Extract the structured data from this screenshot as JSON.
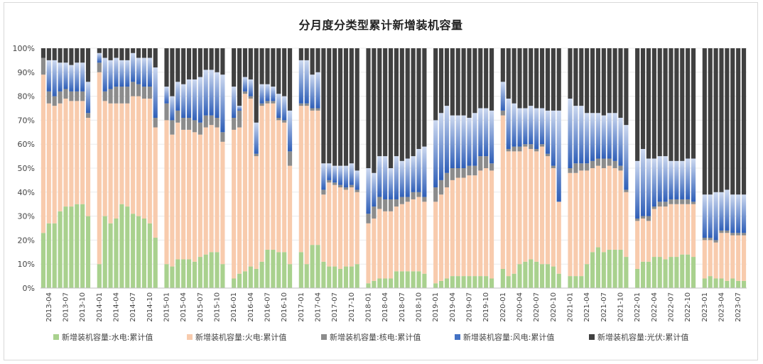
{
  "chart_data": {
    "type": "bar",
    "stacked": true,
    "title": "分月度分类型累计新增装机容量",
    "xlabel": "",
    "ylabel": "",
    "ylim": [
      0,
      100
    ],
    "yticks": [
      "0%",
      "10%",
      "20%",
      "30%",
      "40%",
      "50%",
      "60%",
      "70%",
      "80%",
      "90%",
      "100%"
    ],
    "xtick_labels": [
      "2013-04",
      "2013-07",
      "2013-10",
      "2014-01",
      "2014-04",
      "2014-07",
      "2014-10",
      "2015-01",
      "2015-04",
      "2015-07",
      "2015-10",
      "2016-01",
      "2016-04",
      "2016-07",
      "2016-10",
      "2017-01",
      "2017-04",
      "2017-07",
      "2017-10",
      "2018-01",
      "2018-04",
      "2018-07",
      "2018-10",
      "2019-01",
      "2019-04",
      "2019-07",
      "2019-10",
      "2020-01",
      "2020-04",
      "2020-07",
      "2020-10",
      "2021-01",
      "2021-04",
      "2021-07",
      "2021-10",
      "2022-01",
      "2022-04",
      "2022-07",
      "2022-10",
      "2023-01",
      "2023-04",
      "2023-07"
    ],
    "years": [
      {
        "start": "2013-03",
        "hydro": [
          23,
          27,
          27,
          32,
          34,
          34,
          35,
          35,
          30
        ],
        "thermal": [
          66,
          50,
          49,
          45,
          45,
          44,
          43,
          43,
          41
        ],
        "nuclear": [
          7,
          5,
          4,
          5,
          4,
          4,
          4,
          4,
          2
        ],
        "wind": [
          0,
          13,
          15,
          12,
          11,
          11,
          12,
          12,
          13
        ],
        "solar": [
          4,
          5,
          5,
          6,
          6,
          7,
          6,
          6,
          14
        ]
      },
      {
        "start": "2014-01",
        "hydro": [
          10,
          30,
          27,
          29,
          35,
          34,
          31,
          30,
          29,
          27,
          21
        ],
        "thermal": [
          80,
          48,
          50,
          48,
          42,
          43,
          49,
          50,
          50,
          52,
          46
        ],
        "nuclear": [
          4,
          4,
          6,
          7,
          7,
          7,
          6,
          5,
          5,
          5,
          4
        ],
        "wind": [
          4,
          14,
          12,
          12,
          11,
          11,
          12,
          11,
          12,
          12,
          21
        ],
        "solar": [
          2,
          4,
          5,
          4,
          5,
          5,
          2,
          4,
          4,
          4,
          8
        ]
      },
      {
        "start": "2015-01",
        "hydro": [
          10,
          9,
          12,
          12,
          12,
          11,
          13,
          14,
          15,
          15,
          10
        ],
        "thermal": [
          60,
          55,
          57,
          54,
          54,
          54,
          51,
          53,
          53,
          52,
          51
        ],
        "nuclear": [
          7,
          6,
          5,
          5,
          5,
          5,
          5,
          5,
          4,
          4,
          4
        ],
        "wind": [
          7,
          10,
          12,
          14,
          16,
          17,
          19,
          19,
          19,
          19,
          24
        ],
        "solar": [
          16,
          20,
          14,
          15,
          13,
          13,
          12,
          9,
          9,
          10,
          11
        ]
      },
      {
        "start": "2016-01",
        "hydro": [
          4,
          6,
          7,
          9,
          8,
          11,
          16,
          16,
          15,
          15,
          10
        ],
        "thermal": [
          62,
          61,
          74,
          70,
          47,
          65,
          61,
          61,
          55,
          54,
          41
        ],
        "nuclear": [
          5,
          7,
          1,
          1,
          1,
          1,
          1,
          1,
          1,
          1,
          6
        ],
        "wind": [
          13,
          2,
          6,
          7,
          13,
          8,
          7,
          6,
          10,
          10,
          17
        ],
        "solar": [
          16,
          24,
          12,
          13,
          31,
          15,
          15,
          16,
          19,
          20,
          26
        ]
      },
      {
        "start": "2017-01",
        "hydro": [
          15,
          10,
          18,
          18,
          11,
          9,
          9,
          8,
          9,
          9,
          10
        ],
        "thermal": [
          61,
          66,
          56,
          56,
          28,
          35,
          34,
          34,
          32,
          33,
          30
        ],
        "nuclear": [
          1,
          1,
          1,
          1,
          2,
          1,
          1,
          1,
          1,
          1,
          1
        ],
        "wind": [
          18,
          18,
          14,
          15,
          11,
          7,
          7,
          8,
          9,
          9,
          8
        ],
        "solar": [
          5,
          5,
          11,
          10,
          48,
          48,
          49,
          49,
          49,
          48,
          51
        ]
      },
      {
        "start": "2018-01",
        "hydro": [
          2,
          3,
          4,
          4,
          4,
          7,
          7,
          7,
          7,
          7,
          6
        ],
        "thermal": [
          25,
          26,
          29,
          28,
          28,
          27,
          28,
          29,
          30,
          31,
          30
        ],
        "nuclear": [
          4,
          5,
          5,
          5,
          5,
          3,
          3,
          2,
          3,
          2,
          2
        ],
        "wind": [
          19,
          14,
          17,
          18,
          13,
          18,
          15,
          16,
          15,
          18,
          21
        ],
        "solar": [
          50,
          52,
          45,
          45,
          50,
          45,
          47,
          46,
          45,
          42,
          41
        ]
      },
      {
        "start": "2019-01",
        "hydro": [
          2,
          3,
          4,
          5,
          5,
          5,
          5,
          5,
          5,
          5,
          4
        ],
        "thermal": [
          34,
          36,
          38,
          40,
          41,
          41,
          42,
          42,
          44,
          45,
          45
        ],
        "nuclear": [
          6,
          6,
          6,
          5,
          4,
          4,
          4,
          4,
          6,
          5,
          3
        ],
        "wind": [
          28,
          28,
          28,
          22,
          22,
          22,
          20,
          22,
          20,
          20,
          22
        ],
        "solar": [
          30,
          27,
          24,
          28,
          28,
          28,
          29,
          27,
          25,
          25,
          26
        ]
      },
      {
        "start": "2020-01",
        "hydro": [
          8,
          5,
          6,
          10,
          11,
          12,
          11,
          10,
          10,
          9,
          6
        ],
        "thermal": [
          64,
          52,
          51,
          47,
          48,
          46,
          46,
          49,
          45,
          41,
          30
        ],
        "nuclear": [
          2,
          1,
          2,
          2,
          1,
          2,
          1,
          1,
          1,
          1,
          0
        ],
        "wind": [
          12,
          21,
          18,
          16,
          15,
          16,
          17,
          15,
          18,
          23,
          38
        ],
        "solar": [
          14,
          21,
          23,
          25,
          25,
          24,
          25,
          25,
          26,
          26,
          26
        ]
      },
      {
        "start": "2021-01",
        "hydro": [
          5,
          5,
          5,
          10,
          15,
          17,
          15,
          16,
          16,
          16,
          13
        ],
        "thermal": [
          43,
          43,
          44,
          39,
          35,
          34,
          35,
          35,
          34,
          33,
          27
        ],
        "nuclear": [
          2,
          4,
          3,
          3,
          3,
          3,
          4,
          3,
          3,
          2,
          1
        ],
        "wind": [
          29,
          24,
          24,
          21,
          20,
          19,
          18,
          19,
          20,
          20,
          27
        ],
        "solar": [
          21,
          24,
          24,
          27,
          27,
          27,
          28,
          27,
          27,
          29,
          32
        ]
      },
      {
        "start": "2022-01",
        "hydro": [
          8,
          11,
          11,
          13,
          13,
          12,
          13,
          13,
          14,
          14,
          13
        ],
        "thermal": [
          20,
          18,
          17,
          20,
          21,
          22,
          22,
          22,
          21,
          21,
          22
        ],
        "nuclear": [
          1,
          1,
          2,
          1,
          2,
          2,
          2,
          2,
          2,
          2,
          1
        ],
        "wind": [
          24,
          28,
          24,
          20,
          19,
          19,
          16,
          16,
          16,
          17,
          18
        ],
        "solar": [
          47,
          42,
          46,
          46,
          45,
          45,
          47,
          47,
          47,
          46,
          46
        ]
      },
      {
        "start": "2023-01",
        "hydro": [
          4,
          5,
          4,
          4,
          3,
          4,
          3,
          3
        ],
        "thermal": [
          16,
          15,
          15,
          19,
          20,
          18,
          19,
          19
        ],
        "nuclear": [
          1,
          1,
          1,
          1,
          1,
          1,
          1,
          1
        ],
        "wind": [
          18,
          18,
          20,
          16,
          17,
          16,
          16,
          16
        ],
        "solar": [
          61,
          61,
          60,
          60,
          59,
          61,
          61,
          61
        ]
      }
    ],
    "series": [
      {
        "key": "hydro",
        "name": "新增装机容量:水电:累计值",
        "color": "#a9d18e"
      },
      {
        "key": "thermal",
        "name": "新增装机容量:火电:累计值",
        "color": "#f8cbad"
      },
      {
        "key": "nuclear",
        "name": "新增装机容量:核电:累计值",
        "color": "#8c8c8c"
      },
      {
        "key": "wind",
        "name": "新增装机容量:风电:累计值",
        "color": "#4472c4"
      },
      {
        "key": "solar",
        "name": "新增装机容量:光伏:累计值",
        "color": "#404040"
      }
    ]
  }
}
